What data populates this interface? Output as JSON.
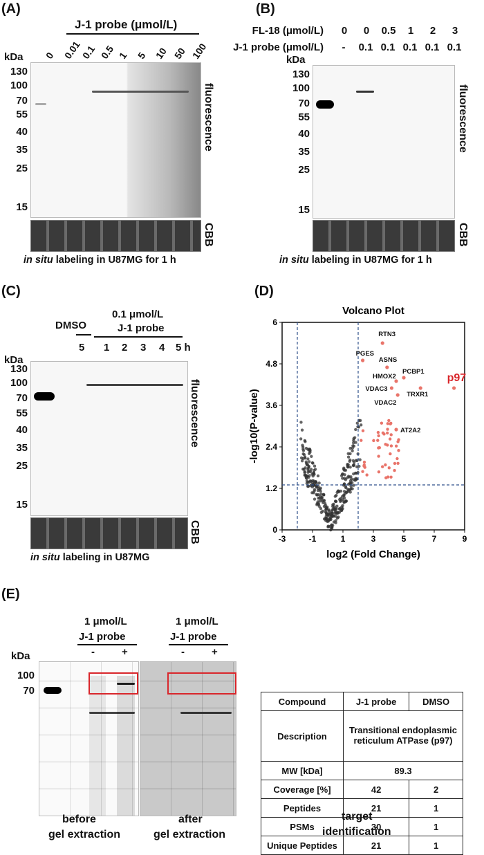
{
  "panelA": {
    "label": "(A)",
    "header": "J-1 probe (μmol/L)",
    "lanes": [
      "0",
      "0.01",
      "0.1",
      "0.5",
      "1",
      "5",
      "10",
      "50",
      "100"
    ],
    "kda_title": "kDa",
    "markers": [
      "130",
      "100",
      "70",
      "55",
      "40",
      "35",
      "25",
      "15"
    ],
    "side_label": "fluorescence",
    "cbb_label": "CBB",
    "caption_italic": "in situ",
    "caption_rest": " labeling in U87MG for 1 h"
  },
  "panelB": {
    "label": "(B)",
    "row1_label": "FL-18 (μmol/L)",
    "row1_vals": [
      "0",
      "0",
      "0.5",
      "1",
      "2",
      "3"
    ],
    "row2_label": "J-1 probe (μmol/L)",
    "row2_vals": [
      "-",
      "0.1",
      "0.1",
      "0.1",
      "0.1",
      "0.1"
    ],
    "kda_title": "kDa",
    "markers": [
      "130",
      "100",
      "70",
      "55",
      "40",
      "35",
      "25",
      "15"
    ],
    "side_label": "fluorescence",
    "cbb_label": "CBB",
    "caption_italic": "in situ",
    "caption_rest": " labeling in U87MG for 1 h"
  },
  "panelC": {
    "label": "(C)",
    "dmso": "DMSO",
    "conc": "0.1 μmol/L",
    "probe": "J-1 probe",
    "lanes": [
      "5",
      "1",
      "2",
      "3",
      "4",
      "5 h"
    ],
    "kda_title": "kDa",
    "markers": [
      "130",
      "100",
      "70",
      "55",
      "40",
      "35",
      "25",
      "15"
    ],
    "side_label": "fluorescence",
    "cbb_label": "CBB",
    "caption_italic": "in situ",
    "caption_rest": " labeling in U87MG"
  },
  "panelD": {
    "label": "(D)",
    "chart_data": {
      "type": "scatter",
      "title": "Volcano Plot",
      "xlabel": "log2 (Fold Change)",
      "ylabel": "-log10(P-value)",
      "xlim": [
        -3,
        9
      ],
      "ylim": [
        0,
        6
      ],
      "xticks": [
        "-3",
        "-1",
        "1",
        "3",
        "5",
        "7",
        "9"
      ],
      "yticks": [
        "0",
        "1.2",
        "2.4",
        "3.6",
        "4.8",
        "6"
      ],
      "thresholds": {
        "x": [
          -2,
          2
        ],
        "y": 1.3
      },
      "highlighted": [
        {
          "name": "RTN3",
          "x": 3.6,
          "y": 5.4
        },
        {
          "name": "PGES",
          "x": 2.3,
          "y": 4.9
        },
        {
          "name": "ASNS",
          "x": 3.9,
          "y": 4.7
        },
        {
          "name": "PCBP1",
          "x": 5.0,
          "y": 4.4
        },
        {
          "name": "HMOX2",
          "x": 4.5,
          "y": 4.3
        },
        {
          "name": "VDAC3",
          "x": 4.2,
          "y": 4.1
        },
        {
          "name": "TRXR1",
          "x": 6.1,
          "y": 4.1
        },
        {
          "name": "VDAC2",
          "x": 4.6,
          "y": 3.9
        },
        {
          "name": "p97",
          "x": 8.3,
          "y": 4.1
        },
        {
          "name": "AT2A2",
          "x": 4.5,
          "y": 2.9
        }
      ]
    }
  },
  "panelE": {
    "label": "(E)",
    "conc": "1 μmol/L",
    "probe": "J-1 probe",
    "minus": "-",
    "plus": "+",
    "kda_title": "kDa",
    "markers": [
      "100",
      "70"
    ],
    "before1": "before",
    "before2": "gel extraction",
    "after1": "after",
    "after2": "gel extraction",
    "table": {
      "compound": "Compound",
      "col1": "J-1 probe",
      "col2": "DMSO",
      "desc_label": "Description",
      "desc_val": "Transitional endoplasmic reticulum ATPase (p97)",
      "mw_label": "MW [kDa]",
      "mw_val": "89.3",
      "rows": [
        {
          "label": "Coverage [%]",
          "a": "42",
          "b": "2"
        },
        {
          "label": "Peptides",
          "a": "21",
          "b": "1"
        },
        {
          "label": "PSMs",
          "a": "30",
          "b": "1"
        },
        {
          "label": "Unique Peptides",
          "a": "21",
          "b": "1"
        }
      ]
    },
    "target1": "target",
    "target2": "identification"
  }
}
